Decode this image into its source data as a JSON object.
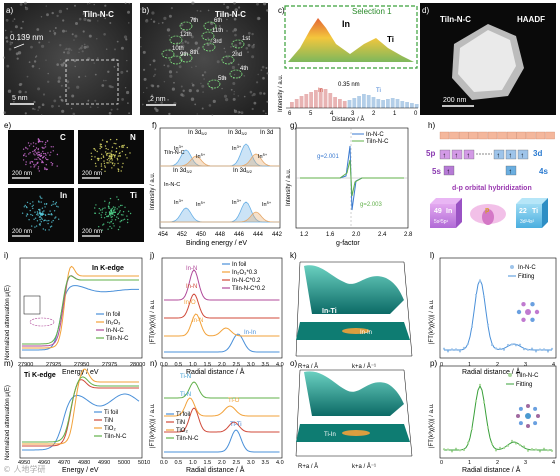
{
  "panels": {
    "a": {
      "letter": "a)",
      "material": "TiIn-N-C",
      "spacing": "0.139 nm",
      "scale": "5 nm"
    },
    "b": {
      "letter": "b)",
      "material": "TiIn-N-C",
      "scale": "2 nm",
      "sites": [
        "1st",
        "2nd",
        "3rd",
        "4th",
        "5th",
        "6th",
        "7th",
        "8th",
        "9th",
        "10th",
        "11th",
        "12th"
      ]
    },
    "c": {
      "letter": "c)",
      "selection": "Selection 1",
      "el1": "In",
      "el2": "Ti",
      "el3": "In",
      "el4": "Ti",
      "dist": "0.35 nm",
      "ylabel": "Intensity / a.u.",
      "xlabel": "Distance / Å",
      "xticks": [
        "6",
        "5",
        "4",
        "3",
        "2",
        "1",
        "0"
      ]
    },
    "d": {
      "letter": "d)",
      "material": "TiIn-N-C",
      "mode": "HAADF",
      "scale": "200 nm"
    },
    "e": {
      "letter": "e)",
      "maps": [
        {
          "el": "C",
          "scale": "200 nm",
          "color": "#cf6fd6"
        },
        {
          "el": "N",
          "scale": "200 nm",
          "color": "#e4e26a"
        },
        {
          "el": "In",
          "scale": "200 nm",
          "color": "#57c7d8"
        },
        {
          "el": "Ti",
          "scale": "200 nm",
          "color": "#4fd08a"
        }
      ]
    },
    "f": {
      "letter": "f)",
      "in3d52": "In 3d",
      "in3d52sub": "5/2",
      "in3d32a": "In 3d",
      "in3d32asub": "3/2",
      "in3d": "In 3d",
      "in3d32b": "In 3d",
      "in3d32bsub": "3/2",
      "in3d52b": "In 3d",
      "in3d52bsub": "5/2",
      "sample1": "TiIn-N-C",
      "sample2": "In-N-C",
      "ion": "In",
      "ionsup": "3+",
      "ion2sup": "δ+",
      "ylabel": "Intensity / a.u.",
      "xlabel": "Binding energy / eV",
      "xticks": [
        "454",
        "452",
        "450",
        "448",
        "446",
        "444",
        "442"
      ]
    },
    "g": {
      "letter": "g)",
      "legend": [
        "In-N-C",
        "TiIn-N-C"
      ],
      "g1": "g=2.001",
      "g2": "g=2.003",
      "xlabel": "g-factor",
      "ylabel": "Intensity / a.u.",
      "xticks": [
        "1.2",
        "1.6",
        "2.0",
        "2.4",
        "2.8"
      ]
    },
    "h": {
      "letter": "h)",
      "orb1": "5p",
      "orb2": "5s",
      "orb3": "3d",
      "orb4": "4s",
      "title": "d-p orbital hybridization",
      "el1": {
        "z": "49",
        "sym": "In",
        "cfg": "5s²5p¹"
      },
      "el2": {
        "z": "22",
        "sym": "Ti",
        "cfg": "3d²4s²"
      },
      "lbl": "p"
    },
    "i": {
      "letter": "i)",
      "title": "In K-edge",
      "legend": [
        "In foil",
        "In₂O₃",
        "In-N-C",
        "TiIn-N-C"
      ],
      "colors": [
        "#4a90d9",
        "#f2a23a",
        "#b04a9a",
        "#62b04a"
      ],
      "xlabel": "Energy / eV",
      "ylabel": "Normalized attenuation μ(E)",
      "xticks": [
        "27900",
        "27925",
        "27950",
        "27975",
        "28000"
      ]
    },
    "j": {
      "letter": "j)",
      "legend": [
        "In foil",
        "In₂O₃*0.3",
        "In-N-C*0.2",
        "TiIn-N-C*0.2"
      ],
      "colors": [
        "#4a90d9",
        "#f2a23a",
        "#d04a3a",
        "#b04a9a"
      ],
      "labels": [
        "In-N",
        "In-N",
        "In-O",
        "In-N",
        "In-In"
      ],
      "xlabel": "Radial distance / Å",
      "ylabel": "|FT(k³χ(k))| / a.u.",
      "xticks": [
        "0.0",
        "0.5",
        "1.0",
        "1.5",
        "2.0",
        "2.5",
        "3.0",
        "3.5",
        "4.0"
      ]
    },
    "k": {
      "letter": "k)",
      "label1": "In-Ti",
      "label2": "In-In",
      "xlabel": "R+a / Å",
      "ylabel": "k+a / Å⁻¹"
    },
    "l": {
      "letter": "l)",
      "legend": [
        "In-N-C",
        "Fitting"
      ],
      "xlabel": "Radial distance / Å",
      "ylabel": "|FT(k³χ(k))| / a.u.",
      "xticks": [
        "0",
        "1",
        "2",
        "3",
        "4"
      ]
    },
    "m": {
      "letter": "m)",
      "title": "Ti K-edge",
      "legend": [
        "Ti foil",
        "TiN",
        "TiO₂",
        "TiIn-N-C"
      ],
      "colors": [
        "#4a90d9",
        "#d04a3a",
        "#f2a23a",
        "#62b04a"
      ],
      "xlabel": "Energy / eV",
      "ylabel": "Normalized attenuation μ(E)",
      "xticks": [
        "4950",
        "4960",
        "4970",
        "4980",
        "4990",
        "5000",
        "5010"
      ]
    },
    "n": {
      "letter": "n)",
      "legend": [
        "Ti foil",
        "TiN",
        "TiO₂",
        "TiIn-N-C"
      ],
      "labels": [
        "Ti-N",
        "Ti-N",
        "Ti-O",
        "Ti-Ti"
      ],
      "xlabel": "Radial distance / Å",
      "ylabel": "|FT(k³χ(k))| / a.u.",
      "xticks": [
        "0.0",
        "0.5",
        "1.0",
        "1.5",
        "2.0",
        "2.5",
        "3.0",
        "3.5",
        "4.0"
      ]
    },
    "o": {
      "letter": "o)",
      "label1": "Ti-In",
      "xlabel": "R+a / Å",
      "ylabel": "k+a / Å⁻¹"
    },
    "p": {
      "letter": "p)",
      "legend": [
        "TiIn-N-C",
        "Fitting"
      ],
      "xlabel": "Radial distance / Å",
      "ylabel": "|FT(k³χ(k))| / a.u.",
      "xticks": [
        "0",
        "1",
        "2",
        "3",
        "4"
      ]
    }
  },
  "watermark": "© 人地学研"
}
